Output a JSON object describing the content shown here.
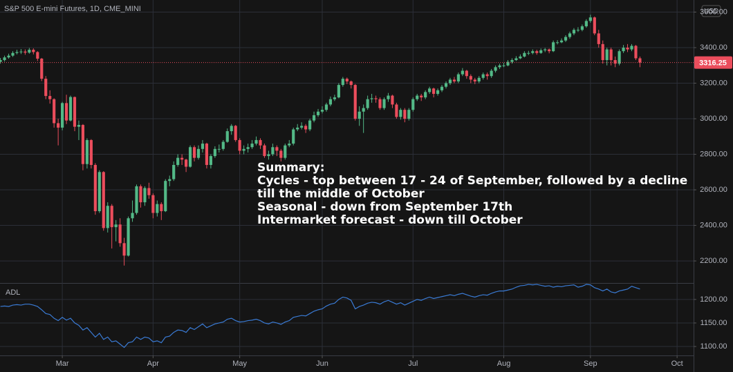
{
  "chart_data": [
    {
      "type": "candlestick",
      "title": "S&P 500 E-mini Futures, 1D, CME_MINI",
      "currency": "USD",
      "up_color": "#53b987",
      "down_color": "#eb4d5c",
      "grid": true,
      "open": [
        3320,
        3330,
        3345,
        3355,
        3370,
        3375,
        3378,
        3372,
        3388,
        3375,
        3338,
        3225,
        3128,
        3110,
        2975,
        2950,
        3088,
        2990,
        3122,
        2955,
        2965,
        2745,
        2880,
        2740,
        2480,
        2700,
        2385,
        2510,
        2390,
        2405,
        2300,
        2230,
        2440,
        2470,
        2620,
        2530,
        2610,
        2570,
        2470,
        2520,
        2480,
        2650,
        2660,
        2740,
        2780,
        2770,
        2730,
        2840,
        2780,
        2830,
        2860,
        2740,
        2790,
        2830,
        2830,
        2870,
        2930,
        2960,
        2880,
        2820,
        2830,
        2840,
        2860,
        2880,
        2850,
        2790,
        2800,
        2840,
        2820,
        2780,
        2850,
        2860,
        2940,
        2950,
        2960,
        2940,
        2990,
        3020,
        3040,
        3050,
        3080,
        3110,
        3120,
        3190,
        3225,
        3210,
        3190,
        3000,
        3040,
        3060,
        3110,
        3115,
        3110,
        3060,
        3110,
        3130,
        3080,
        3010,
        3050,
        3000,
        3050,
        3110,
        3130,
        3120,
        3150,
        3170,
        3140,
        3160,
        3180,
        3200,
        3220,
        3210,
        3250,
        3270,
        3240,
        3220,
        3210,
        3230,
        3250,
        3240,
        3270,
        3290,
        3300,
        3300,
        3320,
        3330,
        3340,
        3350,
        3370,
        3370,
        3380,
        3370,
        3385,
        3390,
        3380,
        3430,
        3430,
        3440,
        3460,
        3480,
        3500,
        3500,
        3520,
        3550,
        3570,
        3480,
        3420,
        3330,
        3390,
        3330,
        3310,
        3380,
        3400,
        3390,
        3410,
        3340
      ],
      "high": [
        3342,
        3355,
        3366,
        3380,
        3388,
        3392,
        3390,
        3398,
        3396,
        3380,
        3342,
        3240,
        3160,
        3115,
        3000,
        3095,
        3135,
        3130,
        3125,
        2990,
        2970,
        2890,
        2885,
        2750,
        2710,
        2705,
        2530,
        2520,
        2430,
        2440,
        2330,
        2450,
        2540,
        2630,
        2630,
        2620,
        2640,
        2580,
        2540,
        2530,
        2660,
        2680,
        2760,
        2800,
        2800,
        2775,
        2850,
        2850,
        2850,
        2880,
        2865,
        2800,
        2845,
        2855,
        2880,
        2945,
        2970,
        2965,
        2890,
        2850,
        2860,
        2880,
        2900,
        2890,
        2860,
        2820,
        2860,
        2850,
        2830,
        2860,
        2880,
        2950,
        2970,
        2980,
        2970,
        3000,
        3040,
        3055,
        3070,
        3090,
        3125,
        3135,
        3200,
        3235,
        3232,
        3215,
        3195,
        3070,
        3080,
        3130,
        3140,
        3130,
        3120,
        3120,
        3145,
        3135,
        3090,
        3060,
        3060,
        3060,
        3120,
        3140,
        3140,
        3160,
        3180,
        3175,
        3170,
        3190,
        3210,
        3230,
        3235,
        3260,
        3285,
        3275,
        3250,
        3230,
        3240,
        3260,
        3260,
        3280,
        3300,
        3310,
        3315,
        3330,
        3340,
        3352,
        3362,
        3380,
        3382,
        3390,
        3388,
        3395,
        3398,
        3395,
        3440,
        3442,
        3452,
        3470,
        3490,
        3510,
        3515,
        3530,
        3560,
        3585,
        3575,
        3500,
        3440,
        3400,
        3400,
        3350,
        3390,
        3415,
        3420,
        3420,
        3415,
        3350
      ],
      "low": [
        3310,
        3322,
        3338,
        3348,
        3362,
        3364,
        3360,
        3366,
        3362,
        3325,
        3212,
        3110,
        3085,
        2950,
        2850,
        2935,
        2970,
        2985,
        2930,
        2880,
        2710,
        2720,
        2720,
        2460,
        2470,
        2370,
        2360,
        2270,
        2310,
        2280,
        2174,
        2225,
        2420,
        2460,
        2500,
        2510,
        2550,
        2440,
        2450,
        2430,
        2475,
        2620,
        2650,
        2730,
        2740,
        2700,
        2725,
        2760,
        2770,
        2810,
        2720,
        2720,
        2780,
        2810,
        2820,
        2865,
        2910,
        2870,
        2800,
        2800,
        2810,
        2830,
        2850,
        2830,
        2780,
        2770,
        2790,
        2790,
        2760,
        2770,
        2840,
        2850,
        2930,
        2940,
        2920,
        2930,
        2980,
        3010,
        3030,
        3040,
        3070,
        3100,
        3115,
        3180,
        3195,
        3170,
        2990,
        2960,
        2920,
        3050,
        3090,
        3090,
        3050,
        3050,
        3095,
        3060,
        3000,
        2995,
        2980,
        2990,
        3040,
        3100,
        3100,
        3110,
        3140,
        3120,
        3130,
        3150,
        3170,
        3190,
        3200,
        3200,
        3240,
        3225,
        3200,
        3195,
        3200,
        3220,
        3220,
        3230,
        3260,
        3280,
        3290,
        3295,
        3310,
        3325,
        3335,
        3345,
        3358,
        3362,
        3360,
        3365,
        3375,
        3368,
        3375,
        3418,
        3425,
        3432,
        3450,
        3470,
        3488,
        3492,
        3512,
        3540,
        3470,
        3400,
        3310,
        3300,
        3300,
        3290,
        3300,
        3370,
        3375,
        3380,
        3330,
        3290
      ],
      "close": [
        3330,
        3345,
        3355,
        3370,
        3375,
        3378,
        3372,
        3388,
        3375,
        3338,
        3225,
        3128,
        3110,
        2975,
        2950,
        3088,
        2990,
        3122,
        2955,
        2965,
        2745,
        2880,
        2740,
        2480,
        2700,
        2385,
        2510,
        2390,
        2405,
        2300,
        2230,
        2440,
        2470,
        2620,
        2530,
        2610,
        2570,
        2470,
        2520,
        2480,
        2650,
        2660,
        2740,
        2780,
        2770,
        2730,
        2840,
        2780,
        2830,
        2860,
        2740,
        2790,
        2830,
        2830,
        2870,
        2930,
        2960,
        2880,
        2820,
        2830,
        2840,
        2860,
        2880,
        2850,
        2790,
        2800,
        2840,
        2820,
        2780,
        2850,
        2860,
        2940,
        2950,
        2960,
        2940,
        2990,
        3020,
        3040,
        3050,
        3080,
        3110,
        3120,
        3190,
        3225,
        3210,
        3190,
        3000,
        3040,
        3060,
        3110,
        3115,
        3110,
        3060,
        3110,
        3130,
        3080,
        3010,
        3050,
        3000,
        3050,
        3110,
        3130,
        3120,
        3150,
        3170,
        3140,
        3160,
        3180,
        3200,
        3220,
        3210,
        3250,
        3270,
        3240,
        3220,
        3210,
        3230,
        3250,
        3240,
        3270,
        3290,
        3300,
        3300,
        3320,
        3330,
        3340,
        3350,
        3370,
        3370,
        3380,
        3370,
        3385,
        3390,
        3380,
        3430,
        3430,
        3440,
        3460,
        3480,
        3500,
        3500,
        3520,
        3550,
        3570,
        3480,
        3420,
        3330,
        3390,
        3330,
        3310,
        3380,
        3400,
        3390,
        3410,
        3340,
        3316.25
      ],
      "xlim": [
        -0.1,
        168
      ],
      "xticks": [
        {
          "value": 15,
          "label": "Mar"
        },
        {
          "value": 37,
          "label": "Apr"
        },
        {
          "value": 58,
          "label": "May"
        },
        {
          "value": 78,
          "label": "Jun"
        },
        {
          "value": 100,
          "label": "Jul"
        },
        {
          "value": 122,
          "label": "Aug"
        },
        {
          "value": 143,
          "label": "Sep"
        },
        {
          "value": 164,
          "label": "Oct"
        }
      ],
      "ylim": [
        2076,
        3668
      ],
      "yticks": [
        {
          "value": 2200,
          "label": "2200.00"
        },
        {
          "value": 2400,
          "label": "2400.00"
        },
        {
          "value": 2600,
          "label": "2600.00"
        },
        {
          "value": 2800,
          "label": "2800.00"
        },
        {
          "value": 3000,
          "label": "3000.00"
        },
        {
          "value": 3200,
          "label": "3200.00"
        },
        {
          "value": 3400,
          "label": "3400.00"
        },
        {
          "value": 3600,
          "label": "3600.00"
        }
      ],
      "annotation": [
        "Summary:",
        "Cycles - top between 17 - 24 of September, followed by a decline",
        "till the middle of October",
        "Seasonal - down from September 17th",
        "Intermarket forecast - down till October"
      ]
    },
    {
      "type": "line",
      "title": "ADL",
      "color": "#3a7bd5",
      "grid": true,
      "values": [
        1185,
        1186,
        1185,
        1188,
        1189,
        1188,
        1190,
        1190,
        1188,
        1185,
        1178,
        1170,
        1168,
        1160,
        1155,
        1162,
        1156,
        1160,
        1150,
        1145,
        1135,
        1140,
        1130,
        1120,
        1128,
        1115,
        1120,
        1110,
        1112,
        1105,
        1098,
        1108,
        1110,
        1120,
        1115,
        1120,
        1118,
        1110,
        1112,
        1108,
        1120,
        1122,
        1130,
        1135,
        1134,
        1130,
        1140,
        1136,
        1142,
        1148,
        1140,
        1144,
        1148,
        1150,
        1152,
        1158,
        1160,
        1155,
        1152,
        1153,
        1155,
        1156,
        1158,
        1155,
        1150,
        1148,
        1152,
        1150,
        1147,
        1152,
        1155,
        1162,
        1164,
        1166,
        1165,
        1170,
        1175,
        1178,
        1180,
        1186,
        1190,
        1192,
        1200,
        1205,
        1203,
        1198,
        1180,
        1185,
        1188,
        1192,
        1194,
        1193,
        1190,
        1195,
        1198,
        1194,
        1190,
        1193,
        1188,
        1192,
        1196,
        1200,
        1198,
        1202,
        1205,
        1202,
        1204,
        1206,
        1208,
        1210,
        1208,
        1211,
        1213,
        1210,
        1207,
        1205,
        1208,
        1210,
        1209,
        1213,
        1216,
        1218,
        1218,
        1220,
        1222,
        1226,
        1229,
        1230,
        1232,
        1231,
        1232,
        1230,
        1228,
        1229,
        1226,
        1228,
        1227,
        1229,
        1230,
        1231,
        1226,
        1228,
        1232,
        1231,
        1225,
        1222,
        1218,
        1222,
        1216,
        1214,
        1218,
        1220,
        1222,
        1228,
        1225,
        1222
      ],
      "ylim": [
        1081,
        1235
      ],
      "yticks": [
        {
          "value": 1100,
          "label": "1100.00"
        },
        {
          "value": 1150,
          "label": "1150.00"
        },
        {
          "value": 1200,
          "label": "1200.00"
        }
      ]
    }
  ]
}
